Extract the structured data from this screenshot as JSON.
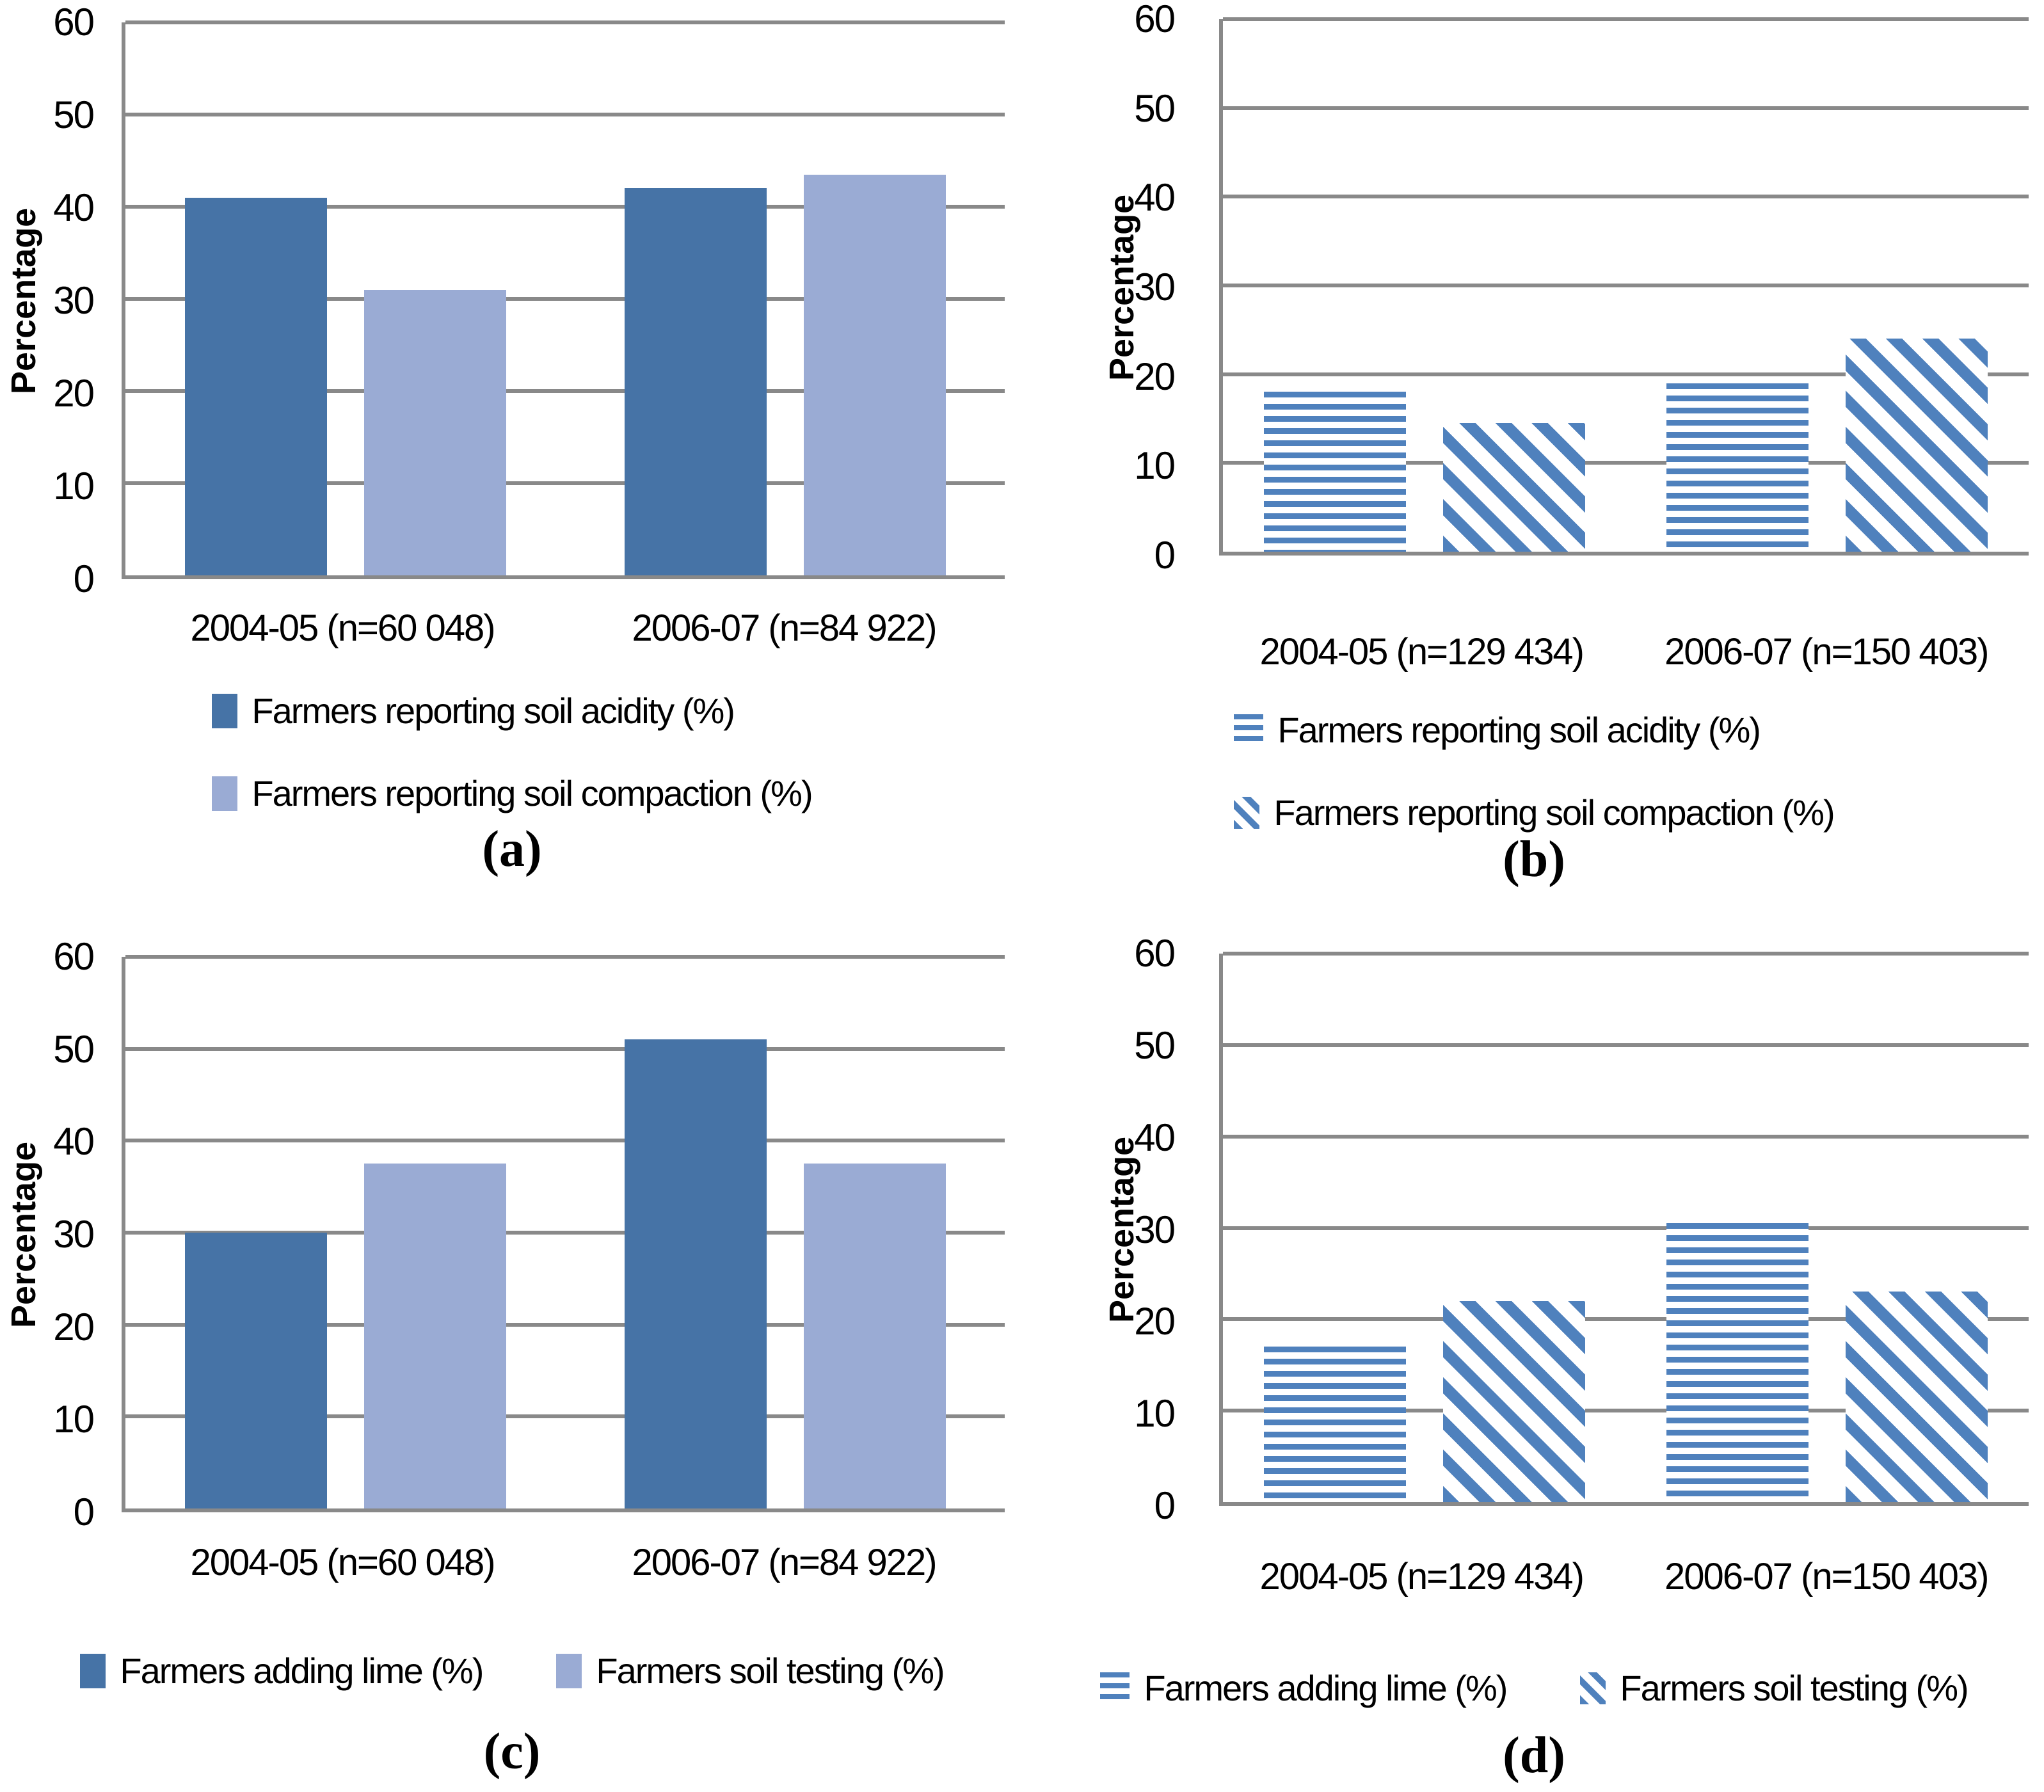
{
  "colors": {
    "solid_dark": "#4673A6",
    "solid_light": "#9AABD4",
    "stripe_blue": "#4F81BD",
    "gridline_gray": "#898989"
  },
  "chart_data": [
    {
      "id": "a",
      "type": "bar",
      "title": "",
      "ylabel": "Percentage",
      "ylim": [
        0,
        60
      ],
      "ytick_step": 10,
      "grid": true,
      "legend_layout": "column",
      "legend_position": "bottom",
      "caption": "(a)",
      "categories": [
        "2004-05 (n=60 048)",
        "2006-07 (n=84 922)"
      ],
      "series": [
        {
          "name": "Farmers reporting soil acidity (%)",
          "style": "solid-dark",
          "values": [
            41,
            42
          ]
        },
        {
          "name": "Farmers reporting soil compaction (%)",
          "style": "solid-light",
          "values": [
            31,
            43.5
          ]
        }
      ]
    },
    {
      "id": "b",
      "type": "bar",
      "title": "",
      "ylabel": "Percentage",
      "ylim": [
        0,
        60
      ],
      "ytick_step": 10,
      "grid": true,
      "legend_layout": "column",
      "legend_position": "bottom",
      "caption": "(b)",
      "categories": [
        "2004-05 (n=129 434)",
        "2006-07 (n=150 403)"
      ],
      "series": [
        {
          "name": "Farmers reporting soil acidity (%)",
          "style": "stripe-horizontal",
          "values": [
            18,
            19
          ]
        },
        {
          "name": "Farmers reporting soil compaction (%)",
          "style": "stripe-diagonal",
          "values": [
            14.5,
            24
          ]
        }
      ]
    },
    {
      "id": "c",
      "type": "bar",
      "title": "",
      "ylabel": "Percentage",
      "ylim": [
        0,
        60
      ],
      "ytick_step": 10,
      "grid": true,
      "legend_layout": "row",
      "legend_position": "bottom",
      "caption": "(c)",
      "categories": [
        "2004-05 (n=60 048)",
        "2006-07 (n=84 922)"
      ],
      "series": [
        {
          "name": "Farmers adding lime (%)",
          "style": "solid-dark",
          "values": [
            30,
            51
          ]
        },
        {
          "name": "Farmers soil testing (%)",
          "style": "solid-light",
          "values": [
            37.5,
            37.5
          ]
        }
      ]
    },
    {
      "id": "d",
      "type": "bar",
      "title": "",
      "ylabel": "Percentage",
      "ylim": [
        0,
        60
      ],
      "ytick_step": 10,
      "grid": true,
      "legend_layout": "row",
      "legend_position": "bottom",
      "caption": "(d)",
      "categories": [
        "2004-05 (n=129 434)",
        "2006-07 (n=150 403)"
      ],
      "series": [
        {
          "name": "Farmers adding lime (%)",
          "style": "stripe-horizontal",
          "values": [
            17,
            30.5
          ]
        },
        {
          "name": "Farmers soil testing (%)",
          "style": "stripe-diagonal",
          "values": [
            22,
            23
          ]
        }
      ]
    }
  ]
}
